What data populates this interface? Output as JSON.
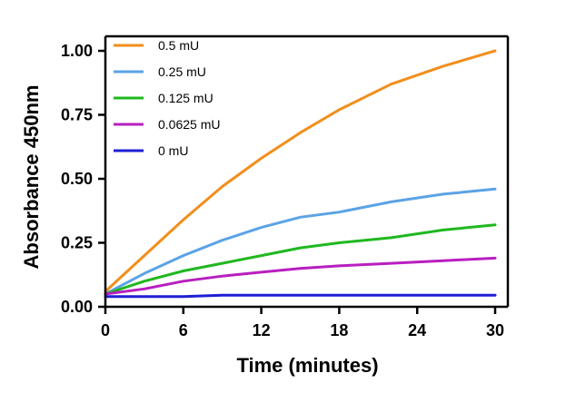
{
  "chart_data": {
    "type": "line",
    "title": "",
    "xlabel": "Time (minutes)",
    "ylabel": "Absorbance 450nm",
    "xlim": [
      0,
      30
    ],
    "ylim": [
      0,
      1.0
    ],
    "x_ticks": [
      "0",
      "6",
      "12",
      "18",
      "24",
      "30"
    ],
    "x_tick_values": [
      0,
      6,
      12,
      18,
      24,
      30
    ],
    "y_ticks": [
      "0.00",
      "0.25",
      "0.50",
      "0.75",
      "1.00"
    ],
    "y_tick_values": [
      0,
      0.25,
      0.5,
      0.75,
      1.0
    ],
    "grid": false,
    "legend_position": "top-left",
    "x": [
      0,
      3,
      6,
      9,
      12,
      15,
      18,
      22,
      26,
      30
    ],
    "series": [
      {
        "name": "0.5 mU",
        "color": "#f28e1c",
        "values": [
          0.06,
          0.2,
          0.34,
          0.47,
          0.58,
          0.68,
          0.77,
          0.87,
          0.94,
          1.0
        ]
      },
      {
        "name": "0.25 mU",
        "color": "#5ba3e6",
        "values": [
          0.05,
          0.13,
          0.2,
          0.26,
          0.31,
          0.35,
          0.37,
          0.41,
          0.44,
          0.46
        ]
      },
      {
        "name": "0.125 mU",
        "color": "#1fb81f",
        "values": [
          0.05,
          0.1,
          0.14,
          0.17,
          0.2,
          0.23,
          0.25,
          0.27,
          0.3,
          0.32
        ]
      },
      {
        "name": "0.0625 mU",
        "color": "#b81fbf",
        "values": [
          0.05,
          0.07,
          0.1,
          0.12,
          0.135,
          0.15,
          0.16,
          0.17,
          0.18,
          0.19
        ]
      },
      {
        "name": "0 mU",
        "color": "#1f1fd6",
        "values": [
          0.04,
          0.04,
          0.04,
          0.045,
          0.045,
          0.045,
          0.045,
          0.045,
          0.045,
          0.045
        ]
      }
    ]
  }
}
